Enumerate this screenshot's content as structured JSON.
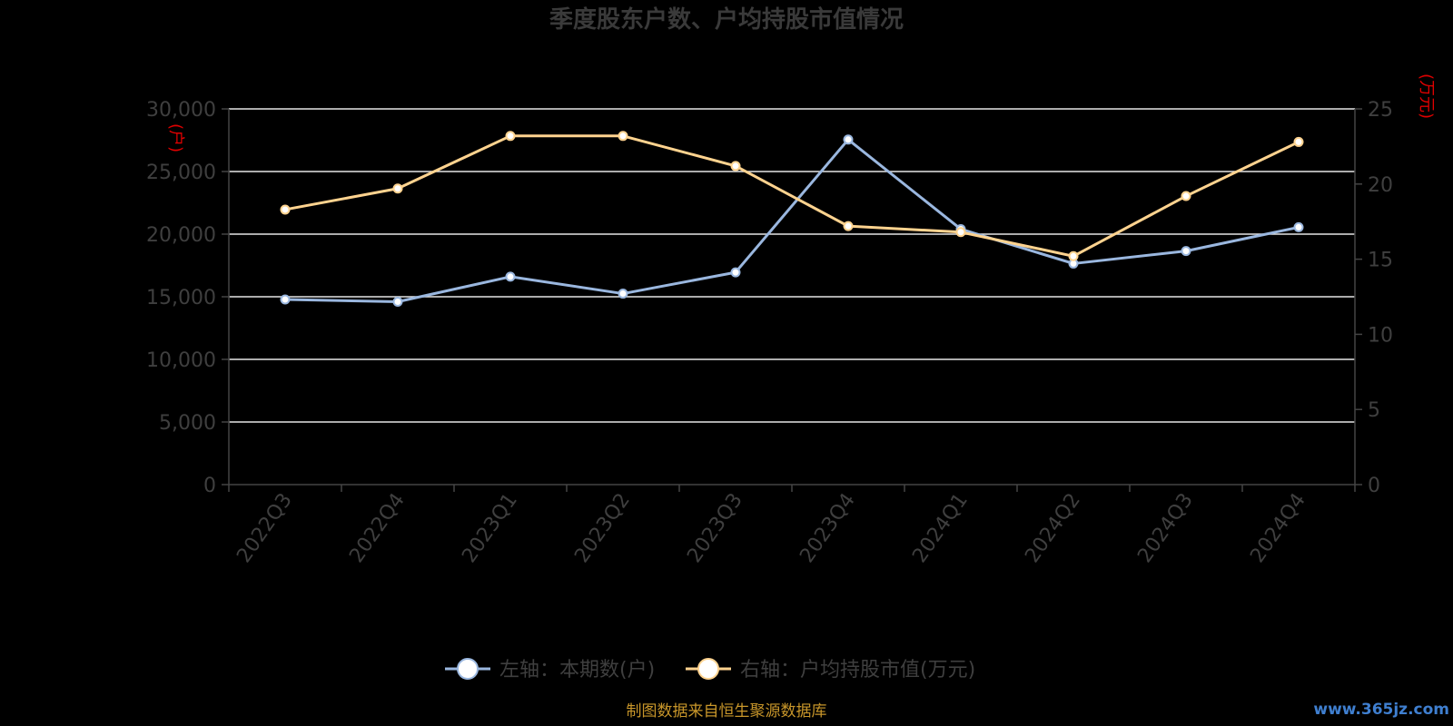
{
  "chart_data": {
    "type": "line",
    "title": "季度股东户数、户均持股市值情况",
    "categories": [
      "2022Q3",
      "2022Q4",
      "2023Q1",
      "2023Q2",
      "2023Q3",
      "2023Q4",
      "2024Q1",
      "2024Q2",
      "2024Q3",
      "2024Q4"
    ],
    "y_left": {
      "unit": "(户)",
      "range": [
        0,
        30000
      ],
      "ticks": [
        "0",
        "5,000",
        "10,000",
        "15,000",
        "20,000",
        "25,000",
        "30,000"
      ]
    },
    "y_right": {
      "unit": "(万元)",
      "range": [
        0,
        25
      ],
      "ticks": [
        "0",
        "5",
        "10",
        "15",
        "20",
        "25"
      ]
    },
    "grid": true,
    "legend_position": "bottom",
    "series": [
      {
        "name": "左轴：本期数(户)",
        "axis": "left",
        "color": "#9ab7df",
        "values": [
          14780,
          14600,
          16600,
          15250,
          16950,
          27550,
          20400,
          17650,
          18650,
          20550
        ]
      },
      {
        "name": "右轴：户均持股市值(万元)",
        "axis": "right",
        "color": "#ffd38f",
        "values": [
          18.3,
          19.7,
          23.2,
          23.2,
          21.2,
          17.2,
          16.8,
          15.2,
          19.2,
          22.8
        ]
      }
    ]
  },
  "footer": {
    "source": "制图数据来自恒生聚源数据库",
    "watermark": "www.365jz.com"
  }
}
